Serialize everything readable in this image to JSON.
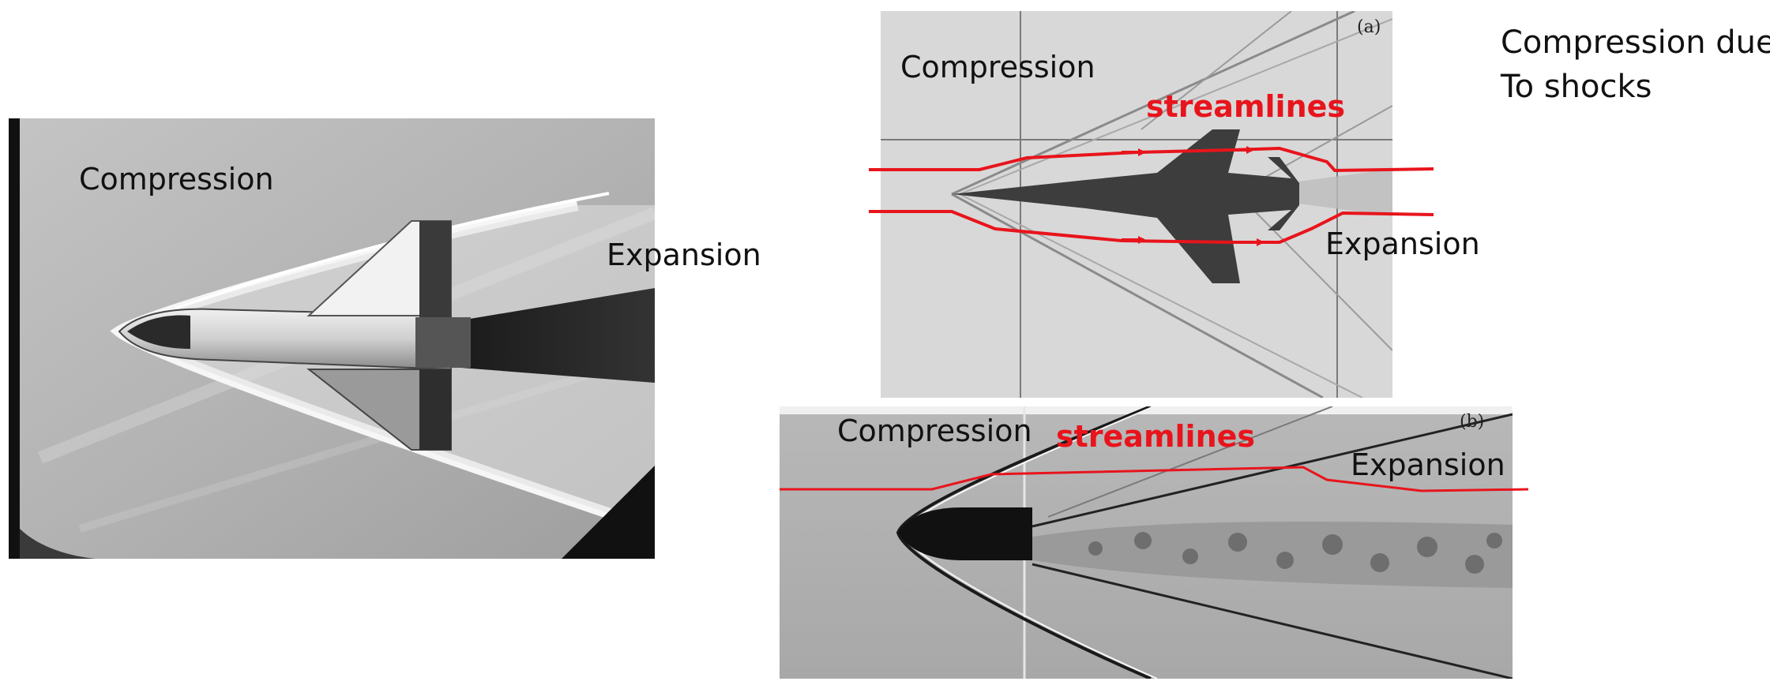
{
  "side_note": {
    "line1": "Compression due",
    "line2": "To shocks"
  },
  "panel_shuttle": {
    "image": "space-shuttle-shadowgraph",
    "compression_label": "Compression",
    "expansion_label": "Expansion"
  },
  "panel_jet": {
    "image": "fighter-jet-schlieren",
    "tag": "(a)",
    "compression_label": "Compression",
    "streamlines_label": "streamlines",
    "expansion_label": "Expansion"
  },
  "panel_bullet": {
    "image": "bullet-shadowgraph",
    "tag": "(b)",
    "compression_label": "Compression",
    "streamlines_label": "streamlines",
    "expansion_label": "Expansion"
  },
  "colors": {
    "annotation_red": "#e8141c",
    "text": "#111111"
  }
}
